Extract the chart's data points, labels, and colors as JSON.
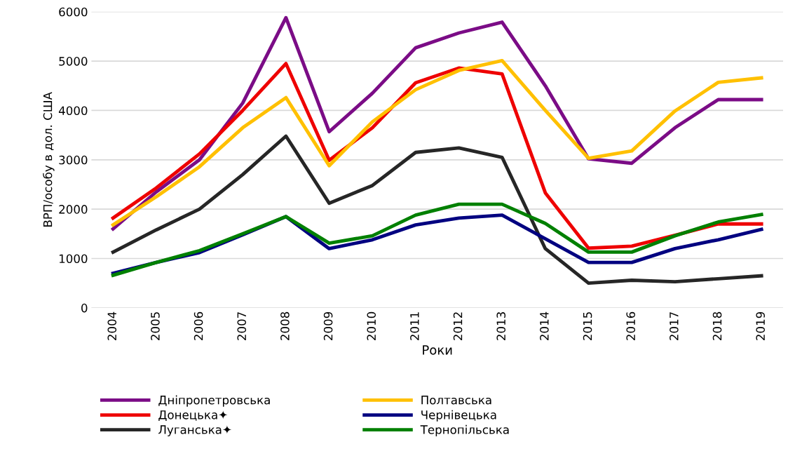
{
  "chart_data": {
    "type": "line",
    "xlabel": "Роки",
    "ylabel": "ВРП/особу в дол. США",
    "categories": [
      "2004",
      "2005",
      "2006",
      "2007",
      "2008",
      "2009",
      "2010",
      "2011",
      "2012",
      "2013",
      "2014",
      "2015",
      "2016",
      "2017",
      "2018",
      "2019"
    ],
    "series": [
      {
        "name": "Дніпропетровська",
        "color": "#7b0c86",
        "values": [
          1600,
          2350,
          3000,
          4150,
          5880,
          3570,
          4350,
          5270,
          5570,
          5790,
          4500,
          3020,
          2930,
          3650,
          4220,
          4220
        ]
      },
      {
        "name": "Донецька✦",
        "color": "#ee0000",
        "values": [
          1820,
          2430,
          3120,
          4000,
          4950,
          2990,
          3650,
          4560,
          4860,
          4740,
          2330,
          1210,
          1250,
          1470,
          1700,
          1700
        ]
      },
      {
        "name": "Луганська✦",
        "color": "#262626",
        "values": [
          1130,
          1580,
          2000,
          2700,
          3480,
          2120,
          2480,
          3150,
          3240,
          3050,
          1200,
          500,
          560,
          530,
          590,
          650
        ]
      },
      {
        "name": "Полтавська",
        "color": "#ffc000",
        "values": [
          1680,
          2250,
          2860,
          3650,
          4260,
          2880,
          3770,
          4420,
          4810,
          5010,
          4000,
          3030,
          3180,
          3990,
          4570,
          4660
        ]
      },
      {
        "name": "Чернівецька",
        "color": "#000080",
        "values": [
          700,
          920,
          1120,
          1480,
          1850,
          1200,
          1380,
          1680,
          1820,
          1880,
          1400,
          920,
          920,
          1200,
          1380,
          1590
        ]
      },
      {
        "name": "Тернопільська",
        "color": "#008000",
        "values": [
          660,
          920,
          1160,
          1500,
          1850,
          1310,
          1460,
          1880,
          2100,
          2100,
          1710,
          1130,
          1130,
          1460,
          1740,
          1890
        ]
      }
    ],
    "ylim": [
      0,
      6000
    ],
    "yticks": [
      0,
      1000,
      2000,
      3000,
      4000,
      5000,
      6000
    ],
    "grid": "y",
    "legend": "bottom",
    "marker": "none",
    "line_style": "solid"
  }
}
